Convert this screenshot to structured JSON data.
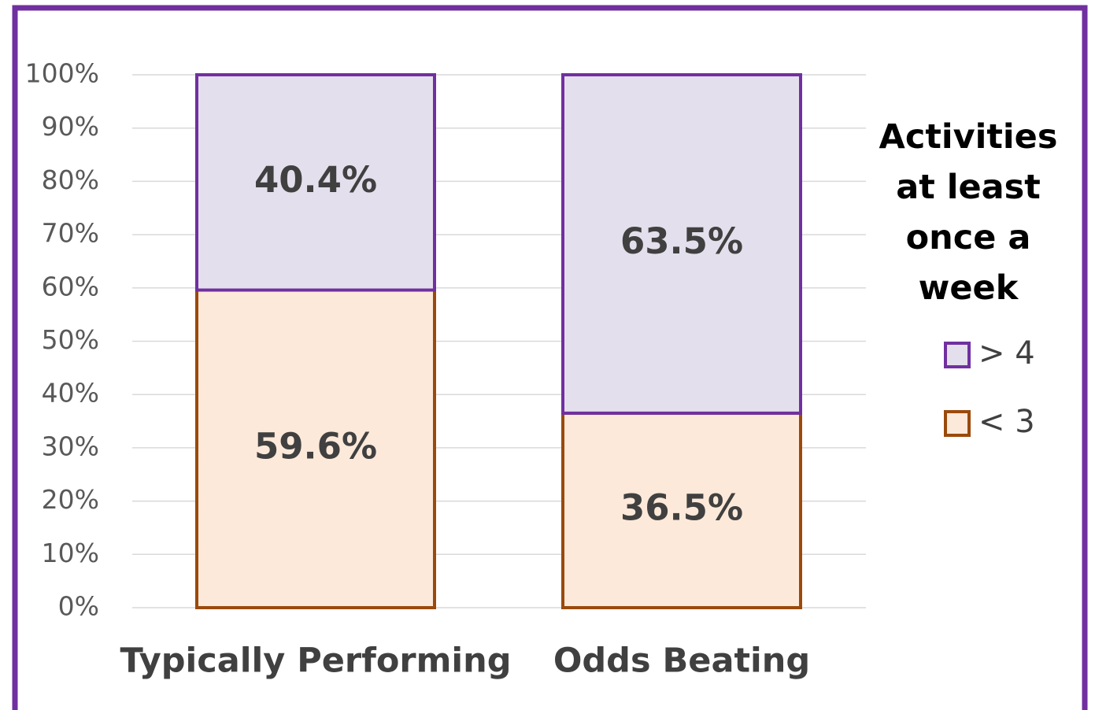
{
  "chart_data": {
    "type": "stacked_bar",
    "categories": [
      "Typically Performing",
      "Odds Beating"
    ],
    "series": [
      {
        "name": "< 3",
        "color": "#fde9d9",
        "edge_color": "#9a4a0c",
        "values": [
          59.6,
          36.5
        ],
        "value_labels": [
          "59.6%",
          "36.5%"
        ]
      },
      {
        "name": "> 4",
        "color": "#e4dfec",
        "edge_color": "#7030a0",
        "values": [
          40.4,
          63.5
        ],
        "value_labels": [
          "40.4%",
          "63.5%"
        ]
      }
    ],
    "ylim": [
      0,
      100
    ],
    "yticks": [
      {
        "value": 0,
        "label": "0%"
      },
      {
        "value": 10,
        "label": "10%"
      },
      {
        "value": 20,
        "label": "20%"
      },
      {
        "value": 30,
        "label": "30%"
      },
      {
        "value": 40,
        "label": "40%"
      },
      {
        "value": 50,
        "label": "50%"
      },
      {
        "value": 60,
        "label": "60%"
      },
      {
        "value": 70,
        "label": "70%"
      },
      {
        "value": 80,
        "label": "80%"
      },
      {
        "value": 90,
        "label": "90%"
      },
      {
        "value": 100,
        "label": "100%"
      }
    ],
    "grid": true,
    "legend_title": "Activities at least once a week",
    "legend_position": "right"
  }
}
